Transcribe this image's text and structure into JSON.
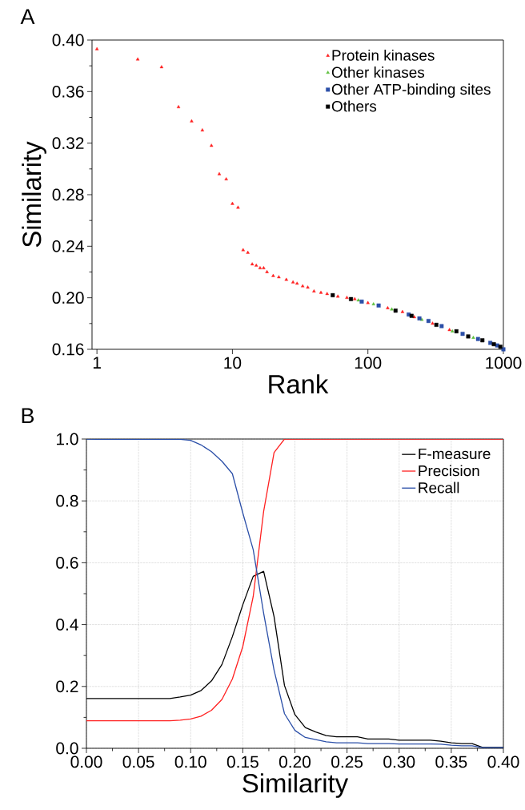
{
  "chart_data": [
    {
      "type": "scatter",
      "annotations": [
        "A"
      ],
      "xlabel": "Rank",
      "ylabel": "Similarity",
      "log": "x",
      "xlim": [
        0.92,
        1000
      ],
      "ylim": [
        0.16,
        0.4
      ],
      "xticks": [
        1,
        10,
        100,
        1000
      ],
      "yticks": [
        0.16,
        {
          "value": 0.2,
          "label": "0.20"
        },
        0.24,
        0.28,
        0.32,
        0.36,
        {
          "value": 0.4,
          "label": "0.40"
        }
      ],
      "legend": "top right",
      "grid": false,
      "series": [
        {
          "name": "Protein kinases",
          "color": "#ff2020",
          "marker": "triangle",
          "x": [
            1,
            2,
            3,
            4,
            5,
            6,
            7,
            8,
            9,
            10,
            11,
            12,
            13,
            14,
            15,
            16,
            17,
            18,
            20,
            22,
            25,
            28,
            30,
            33,
            36,
            40,
            45,
            50,
            60,
            70,
            80,
            100,
            140,
            180,
            220,
            300,
            400
          ],
          "values": [
            0.393,
            0.385,
            0.379,
            0.348,
            0.337,
            0.33,
            0.318,
            0.296,
            0.292,
            0.273,
            0.27,
            0.237,
            0.235,
            0.226,
            0.225,
            0.223,
            0.223,
            0.22,
            0.217,
            0.216,
            0.214,
            0.212,
            0.211,
            0.209,
            0.208,
            0.205,
            0.204,
            0.203,
            0.201,
            0.2,
            0.199,
            0.196,
            0.192,
            0.189,
            0.185,
            0.18,
            0.175
          ]
        },
        {
          "name": "Other kinases",
          "color": "#5cbf3a",
          "marker": "triangle",
          "x": [
            85,
            110,
            150,
            250,
            420,
            600
          ],
          "values": [
            0.198,
            0.195,
            0.191,
            0.183,
            0.174,
            0.169
          ]
        },
        {
          "name": "Other ATP-binding sites",
          "color": "#2b4fa8",
          "marker": "square",
          "x": [
            90,
            120,
            200,
            240,
            280,
            350,
            500,
            650,
            800,
            900,
            1000
          ],
          "values": [
            0.197,
            0.194,
            0.187,
            0.184,
            0.182,
            0.178,
            0.172,
            0.168,
            0.165,
            0.163,
            0.16
          ]
        },
        {
          "name": "Others",
          "color": "#000000",
          "marker": "square",
          "x": [
            55,
            75,
            160,
            210,
            320,
            450,
            550,
            700,
            850,
            950
          ],
          "values": [
            0.202,
            0.199,
            0.19,
            0.186,
            0.179,
            0.174,
            0.17,
            0.167,
            0.164,
            0.162
          ]
        }
      ]
    },
    {
      "type": "line",
      "annotations": [
        "B"
      ],
      "xlabel": "Similarity",
      "xlim": [
        0,
        0.4
      ],
      "ylim": [
        0,
        1.0
      ],
      "xticks": [
        {
          "value": 0,
          "label": "0.00"
        },
        0.05,
        {
          "value": 0.1,
          "label": "0.10"
        },
        0.15,
        {
          "value": 0.2,
          "label": "0.20"
        },
        0.25,
        {
          "value": 0.3,
          "label": "0.30"
        },
        0.35,
        {
          "value": 0.4,
          "label": "0.40"
        }
      ],
      "yticks": [
        {
          "value": 0,
          "label": "0.0"
        },
        0.2,
        0.4,
        0.6,
        0.8,
        {
          "value": 1.0,
          "label": "1.0"
        }
      ],
      "grid": true,
      "legend": "top right",
      "marker": "none",
      "line_style": "solid",
      "x": [
        0,
        0.01,
        0.02,
        0.03,
        0.04,
        0.05,
        0.06,
        0.07,
        0.08,
        0.09,
        0.1,
        0.11,
        0.12,
        0.13,
        0.14,
        0.15,
        0.16,
        0.17,
        0.18,
        0.19,
        0.2,
        0.21,
        0.22,
        0.23,
        0.24,
        0.25,
        0.26,
        0.27,
        0.28,
        0.29,
        0.3,
        0.31,
        0.32,
        0.33,
        0.34,
        0.35,
        0.36,
        0.37,
        0.38,
        0.39,
        0.4
      ],
      "series": [
        {
          "name": "F-measure",
          "color": "#000000",
          "values": [
            0.161,
            0.161,
            0.161,
            0.161,
            0.161,
            0.161,
            0.161,
            0.161,
            0.161,
            0.166,
            0.172,
            0.187,
            0.218,
            0.271,
            0.361,
            0.464,
            0.556,
            0.572,
            0.426,
            0.203,
            0.109,
            0.067,
            0.053,
            0.041,
            0.037,
            0.037,
            0.037,
            0.03,
            0.03,
            0.03,
            0.026,
            0.026,
            0.026,
            0.026,
            0.023,
            0.018,
            0.015,
            0.015,
            0.003,
            0.003,
            0.003
          ]
        },
        {
          "name": "Precision",
          "color": "#ff2020",
          "values": [
            0.089,
            0.089,
            0.089,
            0.089,
            0.089,
            0.089,
            0.089,
            0.089,
            0.089,
            0.091,
            0.095,
            0.104,
            0.123,
            0.158,
            0.224,
            0.329,
            0.491,
            0.766,
            0.956,
            1.0,
            1.0,
            1.0,
            1.0,
            1.0,
            1.0,
            1.0,
            1.0,
            1.0,
            1.0,
            1.0,
            1.0,
            1.0,
            1.0,
            1.0,
            1.0,
            1.0,
            1.0,
            1.0,
            1.0,
            1.0,
            1.0
          ]
        },
        {
          "name": "Recall",
          "color": "#2b4fa8",
          "values": [
            1.0,
            0.999,
            0.999,
            0.999,
            0.999,
            0.999,
            0.999,
            0.999,
            0.999,
            0.999,
            0.996,
            0.981,
            0.959,
            0.928,
            0.888,
            0.761,
            0.642,
            0.437,
            0.253,
            0.112,
            0.058,
            0.035,
            0.028,
            0.021,
            0.018,
            0.018,
            0.018,
            0.015,
            0.015,
            0.015,
            0.014,
            0.014,
            0.014,
            0.014,
            0.013,
            0.01,
            0.008,
            0.008,
            0.002,
            0.002,
            0.002
          ]
        }
      ]
    }
  ]
}
